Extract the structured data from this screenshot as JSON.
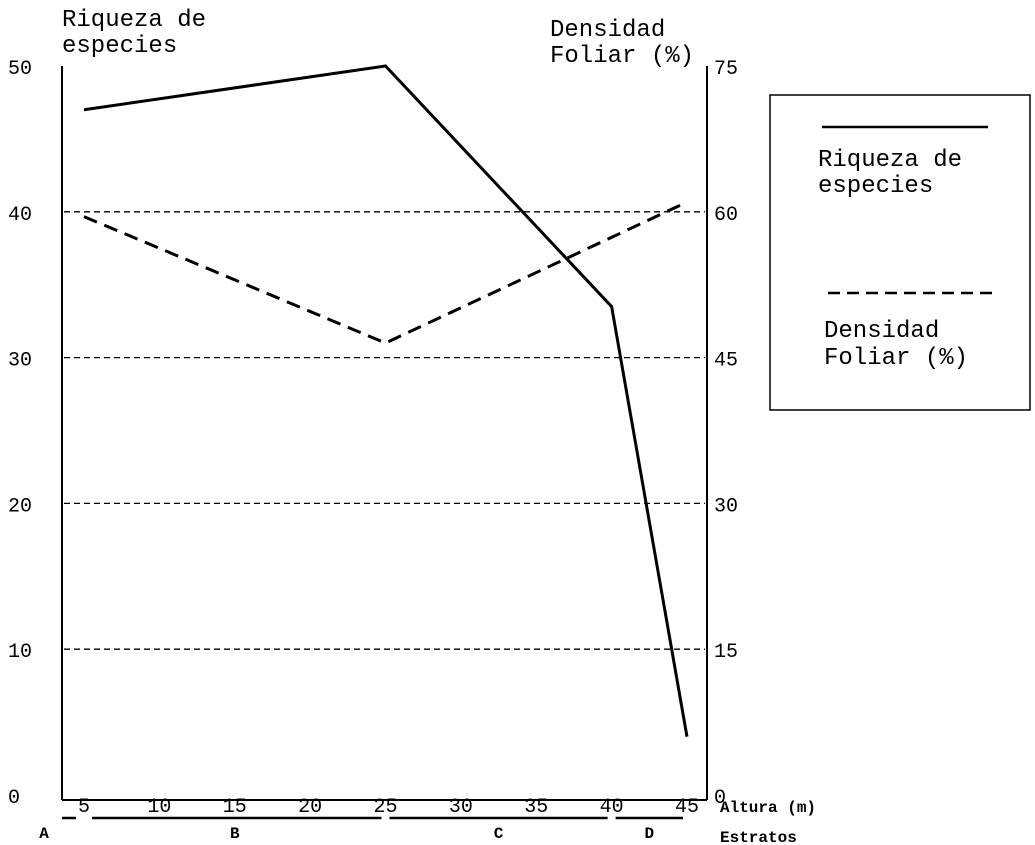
{
  "chart_data": {
    "type": "line",
    "title": "",
    "y_left_label": [
      "Riqueza de",
      "especies"
    ],
    "y_right_label": [
      "Densidad",
      "Foliar (%)"
    ],
    "y_left_range": [
      0,
      50
    ],
    "y_right_range": [
      0,
      75
    ],
    "y_left_ticks": [
      "0",
      "10",
      "20",
      "30",
      "40",
      "50"
    ],
    "y_right_ticks": [
      "0",
      "15",
      "30",
      "45",
      "60",
      "75"
    ],
    "x_label": "Altura (m)",
    "x_range": [
      5,
      45
    ],
    "x_ticks": [
      "5",
      "10",
      "15",
      "20",
      "25",
      "30",
      "35",
      "40",
      "45"
    ],
    "strata_label": "Estratos",
    "strata": [
      {
        "label": "A",
        "from": 5,
        "to": 5
      },
      {
        "label": "B",
        "from": 5,
        "to": 25
      },
      {
        "label": "C",
        "from": 25,
        "to": 40
      },
      {
        "label": "D",
        "from": 40,
        "to": 45
      }
    ],
    "gridlines_left_axis": [
      10,
      20,
      30,
      40
    ],
    "series": [
      {
        "name": "Riqueza de especies",
        "axis": "left",
        "style": "solid",
        "x": [
          5,
          25,
          40,
          45
        ],
        "y": [
          47,
          50,
          33.5,
          4
        ]
      },
      {
        "name": "Densidad Foliar (%)",
        "axis": "right",
        "style": "dashed",
        "x": [
          5,
          25,
          45
        ],
        "y": [
          59.5,
          46.5,
          61
        ]
      }
    ],
    "legend": {
      "position": "right",
      "entries": [
        {
          "label": [
            "Riqueza de",
            "especies"
          ],
          "style": "solid"
        },
        {
          "label": [
            "Densidad",
            "Foliar (%)"
          ],
          "style": "dashed"
        }
      ]
    }
  }
}
